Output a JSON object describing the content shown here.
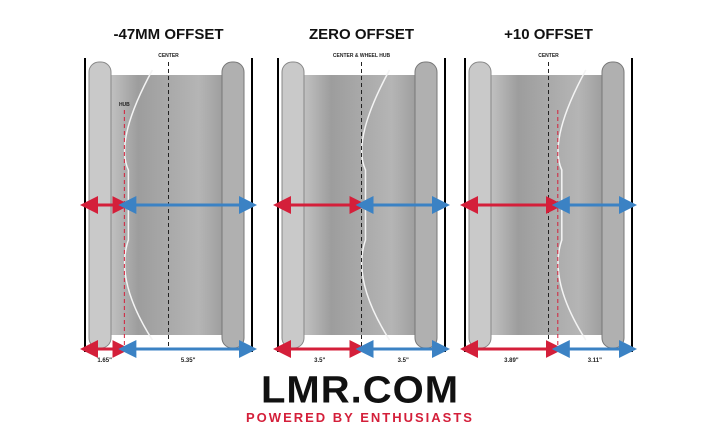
{
  "panels": [
    {
      "title": "-47MM OFFSET",
      "center_label": "CENTER",
      "hub_label": "HUB",
      "left_measure": "1.65\"",
      "right_measure": "5.35\"",
      "left_in": 1.65,
      "right_in": 5.35
    },
    {
      "title": "ZERO OFFSET",
      "center_label": "CENTER & WHEEL HUB",
      "hub_label": "",
      "left_measure": "3.5\"",
      "right_measure": "3.5\"",
      "left_in": 3.5,
      "right_in": 3.5
    },
    {
      "title": "+10 OFFSET",
      "center_label": "CENTER",
      "hub_label": "",
      "left_measure": "3.89\"",
      "right_measure": "3.11\"",
      "left_in": 3.89,
      "right_in": 3.11
    }
  ],
  "logo": {
    "text": "LMR.COM",
    "tagline": "POWERED BY ENTHUSIASTS"
  },
  "colors": {
    "backspacing_arrow": "#d41f3a",
    "frontspacing_arrow": "#3b82c4",
    "wheel": "#a9a9a9",
    "text": "#111111"
  }
}
